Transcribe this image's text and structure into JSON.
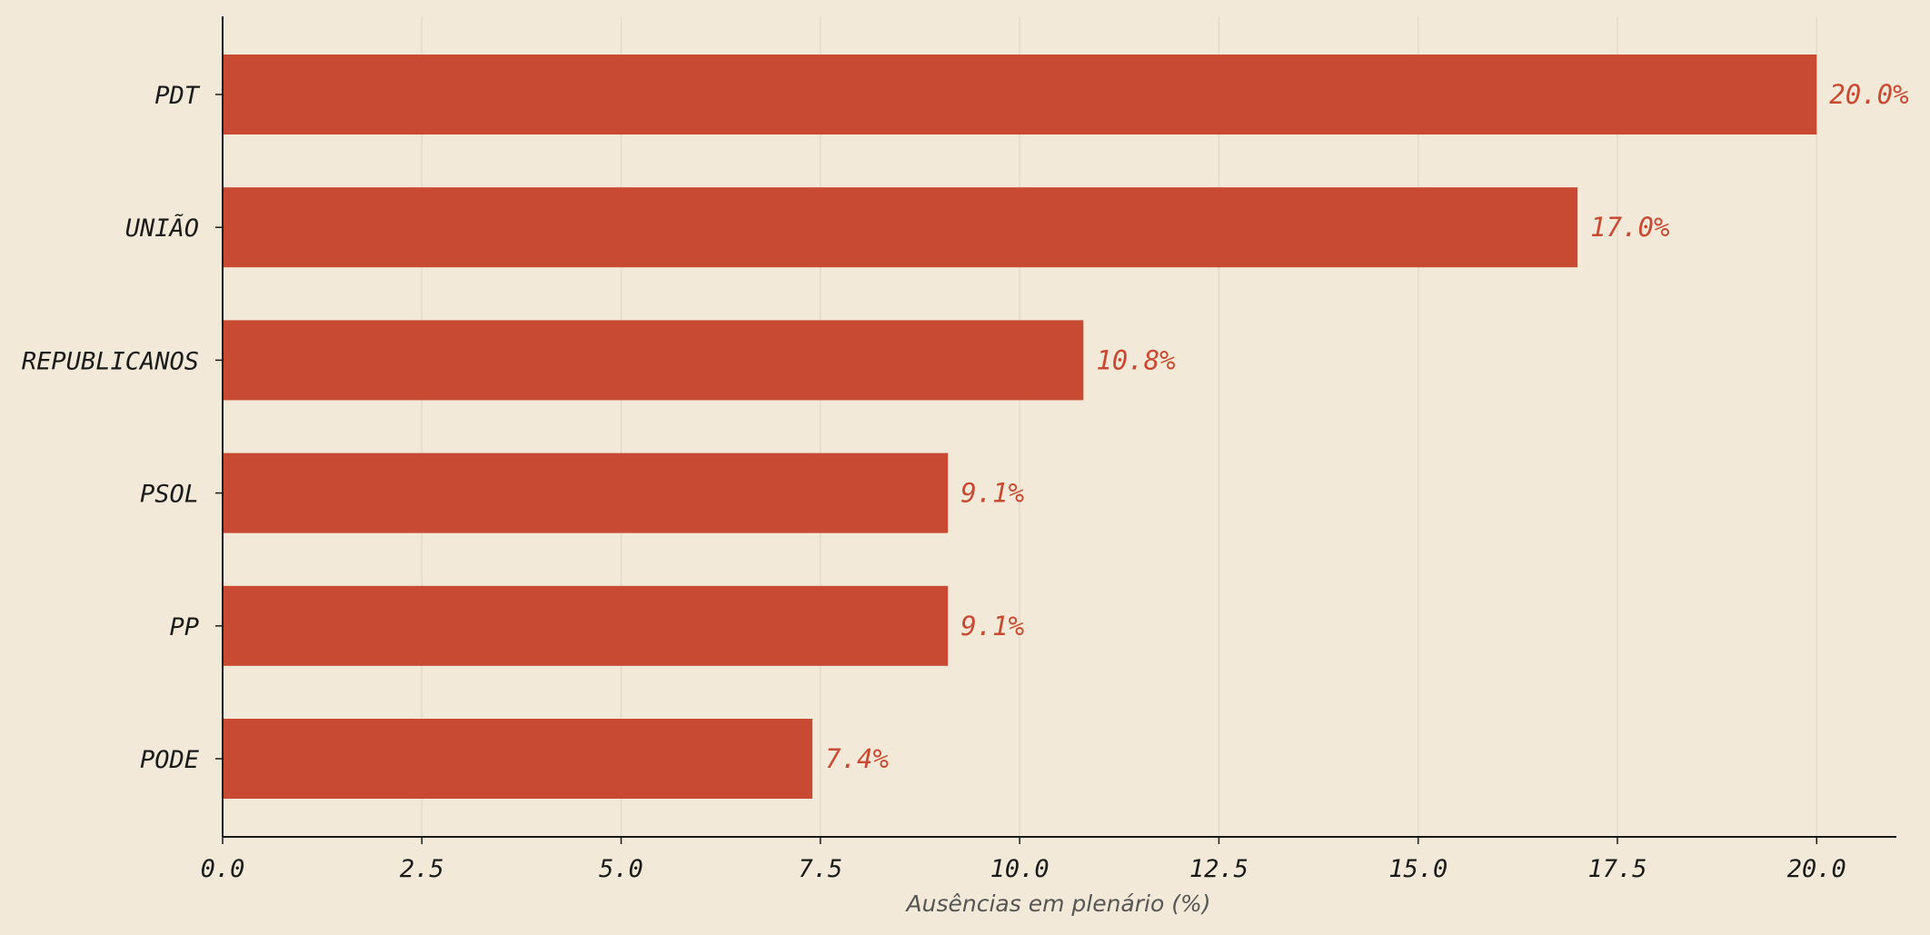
{
  "chart_data": {
    "type": "bar",
    "orientation": "horizontal",
    "categories": [
      "PDT",
      "UNIÃO",
      "REPUBLICANOS",
      "PSOL",
      "PP",
      "PODE"
    ],
    "values": [
      20.0,
      17.0,
      10.8,
      9.1,
      9.1,
      7.4
    ],
    "value_labels": [
      "20.0%",
      "17.0%",
      "10.8%",
      "9.1%",
      "9.1%",
      "7.4%"
    ],
    "title": "",
    "xlabel": "Ausências em plenário (%)",
    "ylabel": "",
    "xlim": [
      0,
      21
    ],
    "x_ticks": [
      0,
      2.5,
      5,
      7.5,
      10,
      12.5,
      15,
      17.5,
      20
    ],
    "x_tick_labels": [
      "0.0",
      "2.5",
      "5.0",
      "7.5",
      "10.0",
      "12.5",
      "15.0",
      "17.5",
      "20.0"
    ],
    "grid": "vertical",
    "legend": "none",
    "colors": {
      "background": "#f2e9d8",
      "bar": "#c94a32",
      "value_label": "#c94a32",
      "axis": "#1a1a1a",
      "grid": "#e3dccb"
    }
  }
}
